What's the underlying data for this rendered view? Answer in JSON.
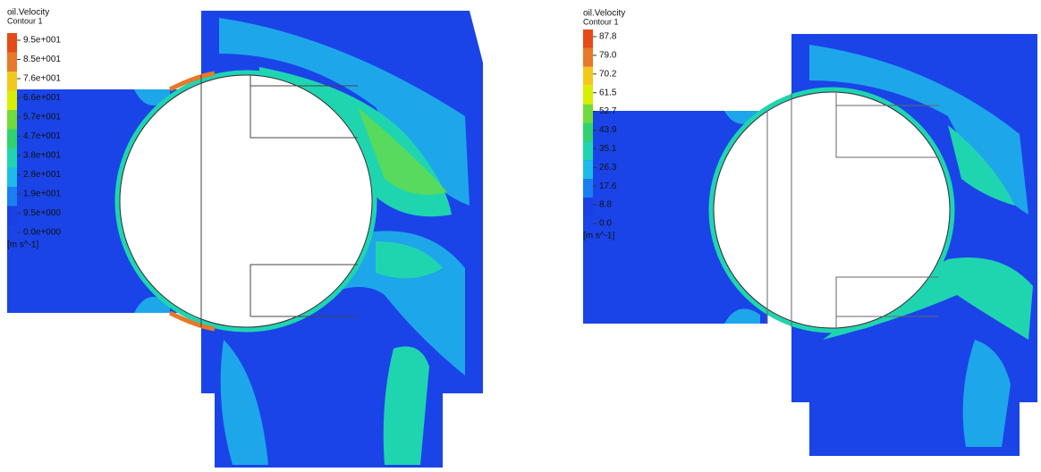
{
  "panels": [
    {
      "variable": "oil.Velocity",
      "contour": "Contour 1",
      "levels": [
        "9.5e+001",
        "8.5e+001",
        "7.6e+001",
        "6.6e+001",
        "5.7e+001",
        "4.7e+001",
        "3.8e+001",
        "2.8e+001",
        "1.9e+001",
        "9.5e+000",
        "0.0e+000"
      ],
      "unit": "[m s^-1]"
    },
    {
      "variable": "oil.Velocity",
      "contour": "Contour 1",
      "levels": [
        "87.8",
        "79.0",
        "70.2",
        "61.5",
        "52.7",
        "43.9",
        "35.1",
        "26.3",
        "17.6",
        "8.8",
        "0.0"
      ],
      "unit": "[m s^-1]"
    }
  ]
}
